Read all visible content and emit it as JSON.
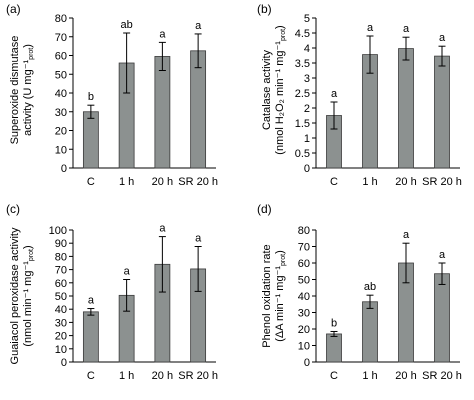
{
  "colors": {
    "bar": "#8c9190",
    "bar_stroke": "#3a3a3a",
    "axis": "#000000",
    "text": "#000000"
  },
  "chart_data": [
    {
      "panel": "(a)",
      "type": "bar",
      "categories": [
        "C",
        "1 h",
        "20 h",
        "SR 20 h"
      ],
      "values": [
        30,
        56,
        59.5,
        62.5
      ],
      "errors": [
        3.5,
        16,
        7.5,
        9
      ],
      "letters": [
        "b",
        "ab",
        "a",
        "a"
      ],
      "ylabel_lines": [
        "Superoxide dismutase",
        "activity (U mg⁻¹prot)"
      ],
      "ylim": [
        0,
        80
      ],
      "yticks": [
        0,
        10,
        20,
        30,
        40,
        50,
        60,
        70,
        80
      ],
      "grid": false
    },
    {
      "panel": "(b)",
      "type": "bar",
      "categories": [
        "C",
        "1 h",
        "20 h",
        "SR 20 h"
      ],
      "values": [
        1.75,
        3.78,
        3.98,
        3.73
      ],
      "errors": [
        0.45,
        0.62,
        0.38,
        0.33
      ],
      "letters": [
        "a",
        "a",
        "a",
        "a"
      ],
      "ylabel_lines": [
        "Catalase activity",
        "(nmol H₂O₂ min⁻¹ mg⁻¹prot)"
      ],
      "ylim": [
        0,
        5
      ],
      "yticks": [
        0,
        0.5,
        1,
        1.5,
        2,
        2.5,
        3,
        3.5,
        4,
        4.5,
        5
      ],
      "grid": false
    },
    {
      "panel": "(c)",
      "type": "bar",
      "categories": [
        "C",
        "1 h",
        "20 h",
        "SR 20 h"
      ],
      "values": [
        38,
        50.5,
        74,
        70.5
      ],
      "errors": [
        2.5,
        12,
        21,
        17
      ],
      "letters": [
        "a",
        "a",
        "a",
        "a"
      ],
      "ylabel_lines": [
        "Guaiacol peroxidase activity",
        "(nmol min⁻¹ mg⁻¹prot)"
      ],
      "ylim": [
        0,
        100
      ],
      "yticks": [
        0,
        10,
        20,
        30,
        40,
        50,
        60,
        70,
        80,
        90,
        100
      ],
      "grid": false
    },
    {
      "panel": "(d)",
      "type": "bar",
      "categories": [
        "C",
        "1 h",
        "20 h",
        "SR 20 h"
      ],
      "values": [
        17,
        36.5,
        60,
        53.5
      ],
      "errors": [
        1.5,
        4,
        12,
        6.5
      ],
      "letters": [
        "b",
        "ab",
        "a",
        "a"
      ],
      "ylabel_lines": [
        "Phenol oxidation rate",
        "(ΔA min⁻¹ mg⁻¹prot)"
      ],
      "ylim": [
        0,
        80
      ],
      "yticks": [
        0,
        10,
        20,
        30,
        40,
        50,
        60,
        70,
        80
      ],
      "grid": false
    }
  ]
}
